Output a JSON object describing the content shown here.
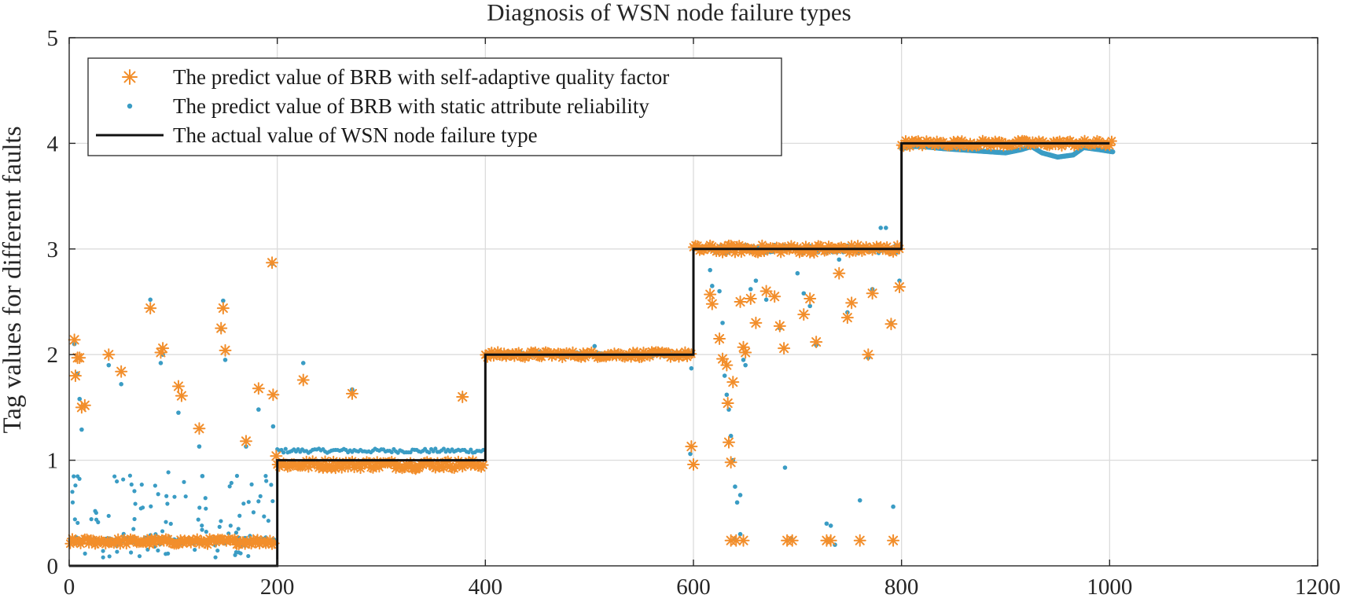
{
  "chart_data": {
    "type": "scatter",
    "title": "Diagnosis of WSN node failure types",
    "xlabel": "",
    "ylabel": "Tag values for different faults",
    "xlim": [
      0,
      1200
    ],
    "ylim": [
      0,
      5
    ],
    "xticks": [
      0,
      200,
      400,
      600,
      800,
      1000,
      1200
    ],
    "yticks": [
      0,
      1,
      2,
      3,
      4,
      5
    ],
    "grid": true,
    "legend_position": "top-left",
    "colors": {
      "brb_adaptive": "#f28e2b",
      "brb_static": "#3a9cc4",
      "actual": "#111111"
    },
    "legend": [
      {
        "label": "The predict value of BRB with self-adaptive quality factor",
        "marker": "asterisk",
        "color_key": "brb_adaptive"
      },
      {
        "label": "The predict value of BRB with static attribute reliability",
        "marker": "dot",
        "color_key": "brb_static"
      },
      {
        "label": "The actual value of WSN node failure type",
        "marker": "line",
        "color_key": "actual"
      }
    ],
    "series": [
      {
        "name": "The actual value of WSN node failure type",
        "kind": "step",
        "x": [
          0,
          200,
          200,
          400,
          400,
          600,
          600,
          800,
          800,
          1000
        ],
        "y": [
          0,
          0,
          1,
          1,
          2,
          2,
          3,
          3,
          4,
          4
        ]
      },
      {
        "name": "The predict value of BRB with self-adaptive quality factor",
        "kind": "scatter",
        "segments": [
          {
            "x_start": 1,
            "x_end": 198,
            "base": 0.23,
            "noise": 0.03
          },
          {
            "x_start": 200,
            "x_end": 398,
            "base": 0.96,
            "noise": 0.04
          },
          {
            "x_start": 400,
            "x_end": 598,
            "base": 2.0,
            "noise": 0.03
          },
          {
            "x_start": 600,
            "x_end": 798,
            "base": 3.0,
            "noise": 0.04
          },
          {
            "x_start": 800,
            "x_end": 1003,
            "base": 4.0,
            "noise": 0.03
          }
        ],
        "outliers": [
          [
            5,
            2.14
          ],
          [
            8,
            1.97
          ],
          [
            6,
            1.8
          ],
          [
            10,
            1.97
          ],
          [
            12,
            1.5
          ],
          [
            15,
            1.52
          ],
          [
            38,
            2.0
          ],
          [
            50,
            1.84
          ],
          [
            78,
            2.44
          ],
          [
            88,
            2.02
          ],
          [
            90,
            2.06
          ],
          [
            105,
            1.7
          ],
          [
            108,
            1.61
          ],
          [
            125,
            1.3
          ],
          [
            148,
            2.44
          ],
          [
            146,
            2.25
          ],
          [
            150,
            2.04
          ],
          [
            170,
            1.18
          ],
          [
            182,
            1.68
          ],
          [
            195,
            2.87
          ],
          [
            196,
            1.62
          ],
          [
            199,
            1.04
          ],
          [
            225,
            1.76
          ],
          [
            272,
            1.63
          ],
          [
            333,
            0.92
          ],
          [
            378,
            1.6
          ],
          [
            598,
            1.13
          ],
          [
            600,
            0.96
          ],
          [
            616,
            2.57
          ],
          [
            618,
            2.48
          ],
          [
            625,
            2.15
          ],
          [
            628,
            1.96
          ],
          [
            632,
            1.9
          ],
          [
            633,
            1.54
          ],
          [
            634,
            1.17
          ],
          [
            636,
            0.98
          ],
          [
            638,
            1.74
          ],
          [
            645,
            2.5
          ],
          [
            648,
            2.07
          ],
          [
            650,
            2.02
          ],
          [
            655,
            2.53
          ],
          [
            660,
            2.3
          ],
          [
            670,
            2.6
          ],
          [
            678,
            2.55
          ],
          [
            683,
            2.27
          ],
          [
            687,
            2.06
          ],
          [
            706,
            2.38
          ],
          [
            712,
            2.53
          ],
          [
            718,
            2.12
          ],
          [
            740,
            2.77
          ],
          [
            748,
            2.35
          ],
          [
            752,
            2.49
          ],
          [
            768,
            2.0
          ],
          [
            772,
            2.58
          ],
          [
            790,
            2.29
          ],
          [
            798,
            2.64
          ],
          [
            636,
            0.24
          ],
          [
            641,
            0.24
          ],
          [
            648,
            0.24
          ],
          [
            690,
            0.24
          ],
          [
            695,
            0.24
          ],
          [
            728,
            0.24
          ],
          [
            732,
            0.24
          ],
          [
            760,
            0.24
          ],
          [
            792,
            0.24
          ]
        ]
      },
      {
        "name": "The predict value of BRB with static attribute reliability",
        "kind": "scatter",
        "segments": [
          {
            "x_start": 1,
            "x_end": 198,
            "base": 0.24,
            "noise": 0.03
          },
          {
            "x_start": 200,
            "x_end": 398,
            "base": 1.09,
            "noise": 0.02
          },
          {
            "x_start": 400,
            "x_end": 598,
            "base": 2.0,
            "noise": 0.025
          },
          {
            "x_start": 600,
            "x_end": 798,
            "base": 3.0,
            "noise": 0.04
          }
        ],
        "curve": {
          "x": [
            800,
            810,
            820,
            840,
            870,
            900,
            915,
            925,
            935,
            950,
            965,
            975,
            990,
            1003
          ],
          "y": [
            3.95,
            3.97,
            3.97,
            3.95,
            3.93,
            3.91,
            3.94,
            3.97,
            3.91,
            3.87,
            3.89,
            3.96,
            3.94,
            3.92
          ]
        },
        "scattered_low": {
          "x_start": 2,
          "x_end": 196,
          "count": 110,
          "ymin": 0.08,
          "ymax": 0.9
        },
        "outliers": [
          [
            5,
            2.1
          ],
          [
            8,
            1.82
          ],
          [
            10,
            1.58
          ],
          [
            12,
            1.29
          ],
          [
            38,
            1.9
          ],
          [
            50,
            1.72
          ],
          [
            78,
            2.52
          ],
          [
            88,
            1.92
          ],
          [
            90,
            2.0
          ],
          [
            105,
            1.45
          ],
          [
            125,
            1.13
          ],
          [
            128,
            0.85
          ],
          [
            148,
            2.51
          ],
          [
            146,
            2.24
          ],
          [
            150,
            1.95
          ],
          [
            170,
            1.13
          ],
          [
            182,
            1.48
          ],
          [
            195,
            2.86
          ],
          [
            196,
            1.32
          ],
          [
            225,
            1.92
          ],
          [
            272,
            1.67
          ],
          [
            378,
            1.61
          ],
          [
            505,
            2.08
          ],
          [
            598,
            1.87
          ],
          [
            597,
            1.06
          ],
          [
            616,
            2.8
          ],
          [
            618,
            2.65
          ],
          [
            625,
            2.6
          ],
          [
            628,
            2.3
          ],
          [
            630,
            1.8
          ],
          [
            632,
            1.62
          ],
          [
            634,
            1.48
          ],
          [
            636,
            1.23
          ],
          [
            638,
            1.0
          ],
          [
            640,
            0.75
          ],
          [
            645,
            0.67
          ],
          [
            642,
            0.6
          ],
          [
            648,
            1.95
          ],
          [
            650,
            1.9
          ],
          [
            655,
            2.62
          ],
          [
            660,
            2.7
          ],
          [
            670,
            2.52
          ],
          [
            683,
            2.25
          ],
          [
            688,
            0.93
          ],
          [
            700,
            2.77
          ],
          [
            706,
            2.58
          ],
          [
            712,
            2.46
          ],
          [
            718,
            2.09
          ],
          [
            740,
            2.9
          ],
          [
            748,
            2.4
          ],
          [
            760,
            0.62
          ],
          [
            768,
            1.97
          ],
          [
            772,
            2.62
          ],
          [
            780,
            3.2
          ],
          [
            785,
            3.2
          ],
          [
            790,
            2.3
          ],
          [
            792,
            0.56
          ],
          [
            798,
            2.7
          ],
          [
            694,
            0.26
          ],
          [
            728,
            0.4
          ],
          [
            732,
            0.38
          ],
          [
            736,
            0.2
          ],
          [
            640,
            0.25
          ],
          [
            645,
            0.3
          ]
        ]
      }
    ]
  }
}
